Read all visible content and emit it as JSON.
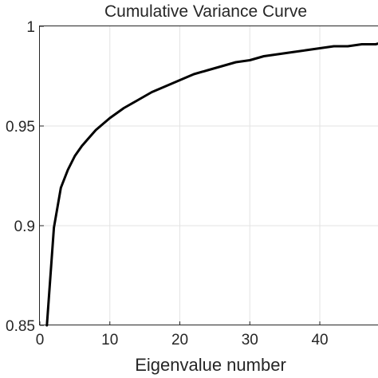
{
  "chart_data": {
    "type": "line",
    "title": "Cumulative Variance Curve",
    "xlabel": "Eigenvalue number",
    "ylabel": "",
    "xlim": [
      0,
      49
    ],
    "ylim": [
      0.85,
      1
    ],
    "xticks": [
      0,
      10,
      20,
      30,
      40
    ],
    "yticks": [
      0.85,
      0.9,
      0.95,
      1
    ],
    "xtick_labels": [
      "0",
      "10",
      "20",
      "30",
      "40"
    ],
    "ytick_labels": [
      "0.85",
      "0.9",
      "0.95",
      "1"
    ],
    "grid": true,
    "line_color": "#000000",
    "series": [
      {
        "x": [
          1,
          2,
          3,
          4,
          5,
          6,
          7,
          8,
          9,
          10,
          12,
          14,
          16,
          18,
          20,
          22,
          24,
          26,
          28,
          30,
          32,
          34,
          36,
          38,
          40,
          42,
          44,
          46,
          48,
          49
        ],
        "values": [
          0.85,
          0.899,
          0.919,
          0.928,
          0.935,
          0.94,
          0.944,
          0.948,
          0.951,
          0.954,
          0.959,
          0.963,
          0.967,
          0.97,
          0.973,
          0.976,
          0.978,
          0.98,
          0.982,
          0.983,
          0.985,
          0.986,
          0.987,
          0.988,
          0.989,
          0.99,
          0.99,
          0.991,
          0.991,
          0.992
        ]
      }
    ]
  }
}
